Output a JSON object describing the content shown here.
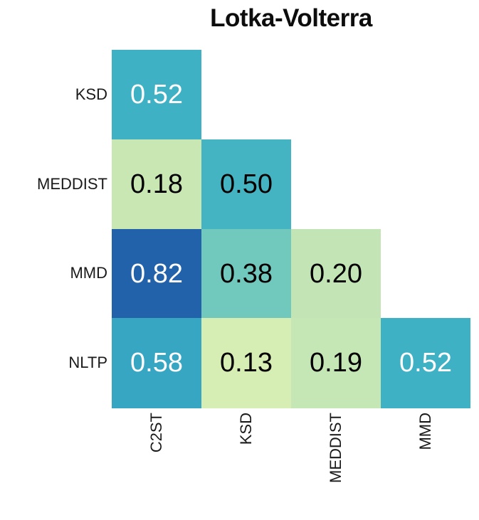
{
  "chart_data": {
    "type": "heatmap",
    "title": "Lotka-Volterra",
    "row_labels": [
      "KSD",
      "MEDDIST",
      "MMD",
      "NLTP"
    ],
    "col_labels": [
      "C2ST",
      "KSD",
      "MEDDIST",
      "MMD"
    ],
    "shape": "lower-triangle",
    "colormap": "YlGnBu",
    "value_range_hint": [
      0,
      1
    ],
    "legend": "none",
    "grid": "off",
    "cells": [
      {
        "row": "KSD",
        "col": "C2ST",
        "value": "0.52",
        "bg": "#3fb1c4",
        "fg": "#ffffff"
      },
      {
        "row": "MEDDIST",
        "col": "C2ST",
        "value": "0.18",
        "bg": "#c9e7b3",
        "fg": "#000000"
      },
      {
        "row": "MEDDIST",
        "col": "KSD",
        "value": "0.50",
        "bg": "#45b4c2",
        "fg": "#000000"
      },
      {
        "row": "MMD",
        "col": "C2ST",
        "value": "0.82",
        "bg": "#2262ab",
        "fg": "#ffffff"
      },
      {
        "row": "MMD",
        "col": "KSD",
        "value": "0.38",
        "bg": "#71c8bd",
        "fg": "#000000"
      },
      {
        "row": "MMD",
        "col": "MEDDIST",
        "value": "0.20",
        "bg": "#c3e5b5",
        "fg": "#000000"
      },
      {
        "row": "NLTP",
        "col": "C2ST",
        "value": "0.58",
        "bg": "#36a6c3",
        "fg": "#ffffff"
      },
      {
        "row": "NLTP",
        "col": "KSD",
        "value": "0.13",
        "bg": "#d6edb3",
        "fg": "#000000"
      },
      {
        "row": "NLTP",
        "col": "MEDDIST",
        "value": "0.19",
        "bg": "#c5e6b5",
        "fg": "#000000"
      },
      {
        "row": "NLTP",
        "col": "MMD",
        "value": "0.52",
        "bg": "#3fb1c4",
        "fg": "#ffffff"
      }
    ]
  },
  "colors": {
    "background": "#ffffff",
    "label_text": "#1a1a1a",
    "title_text": "#0d0d0d"
  }
}
